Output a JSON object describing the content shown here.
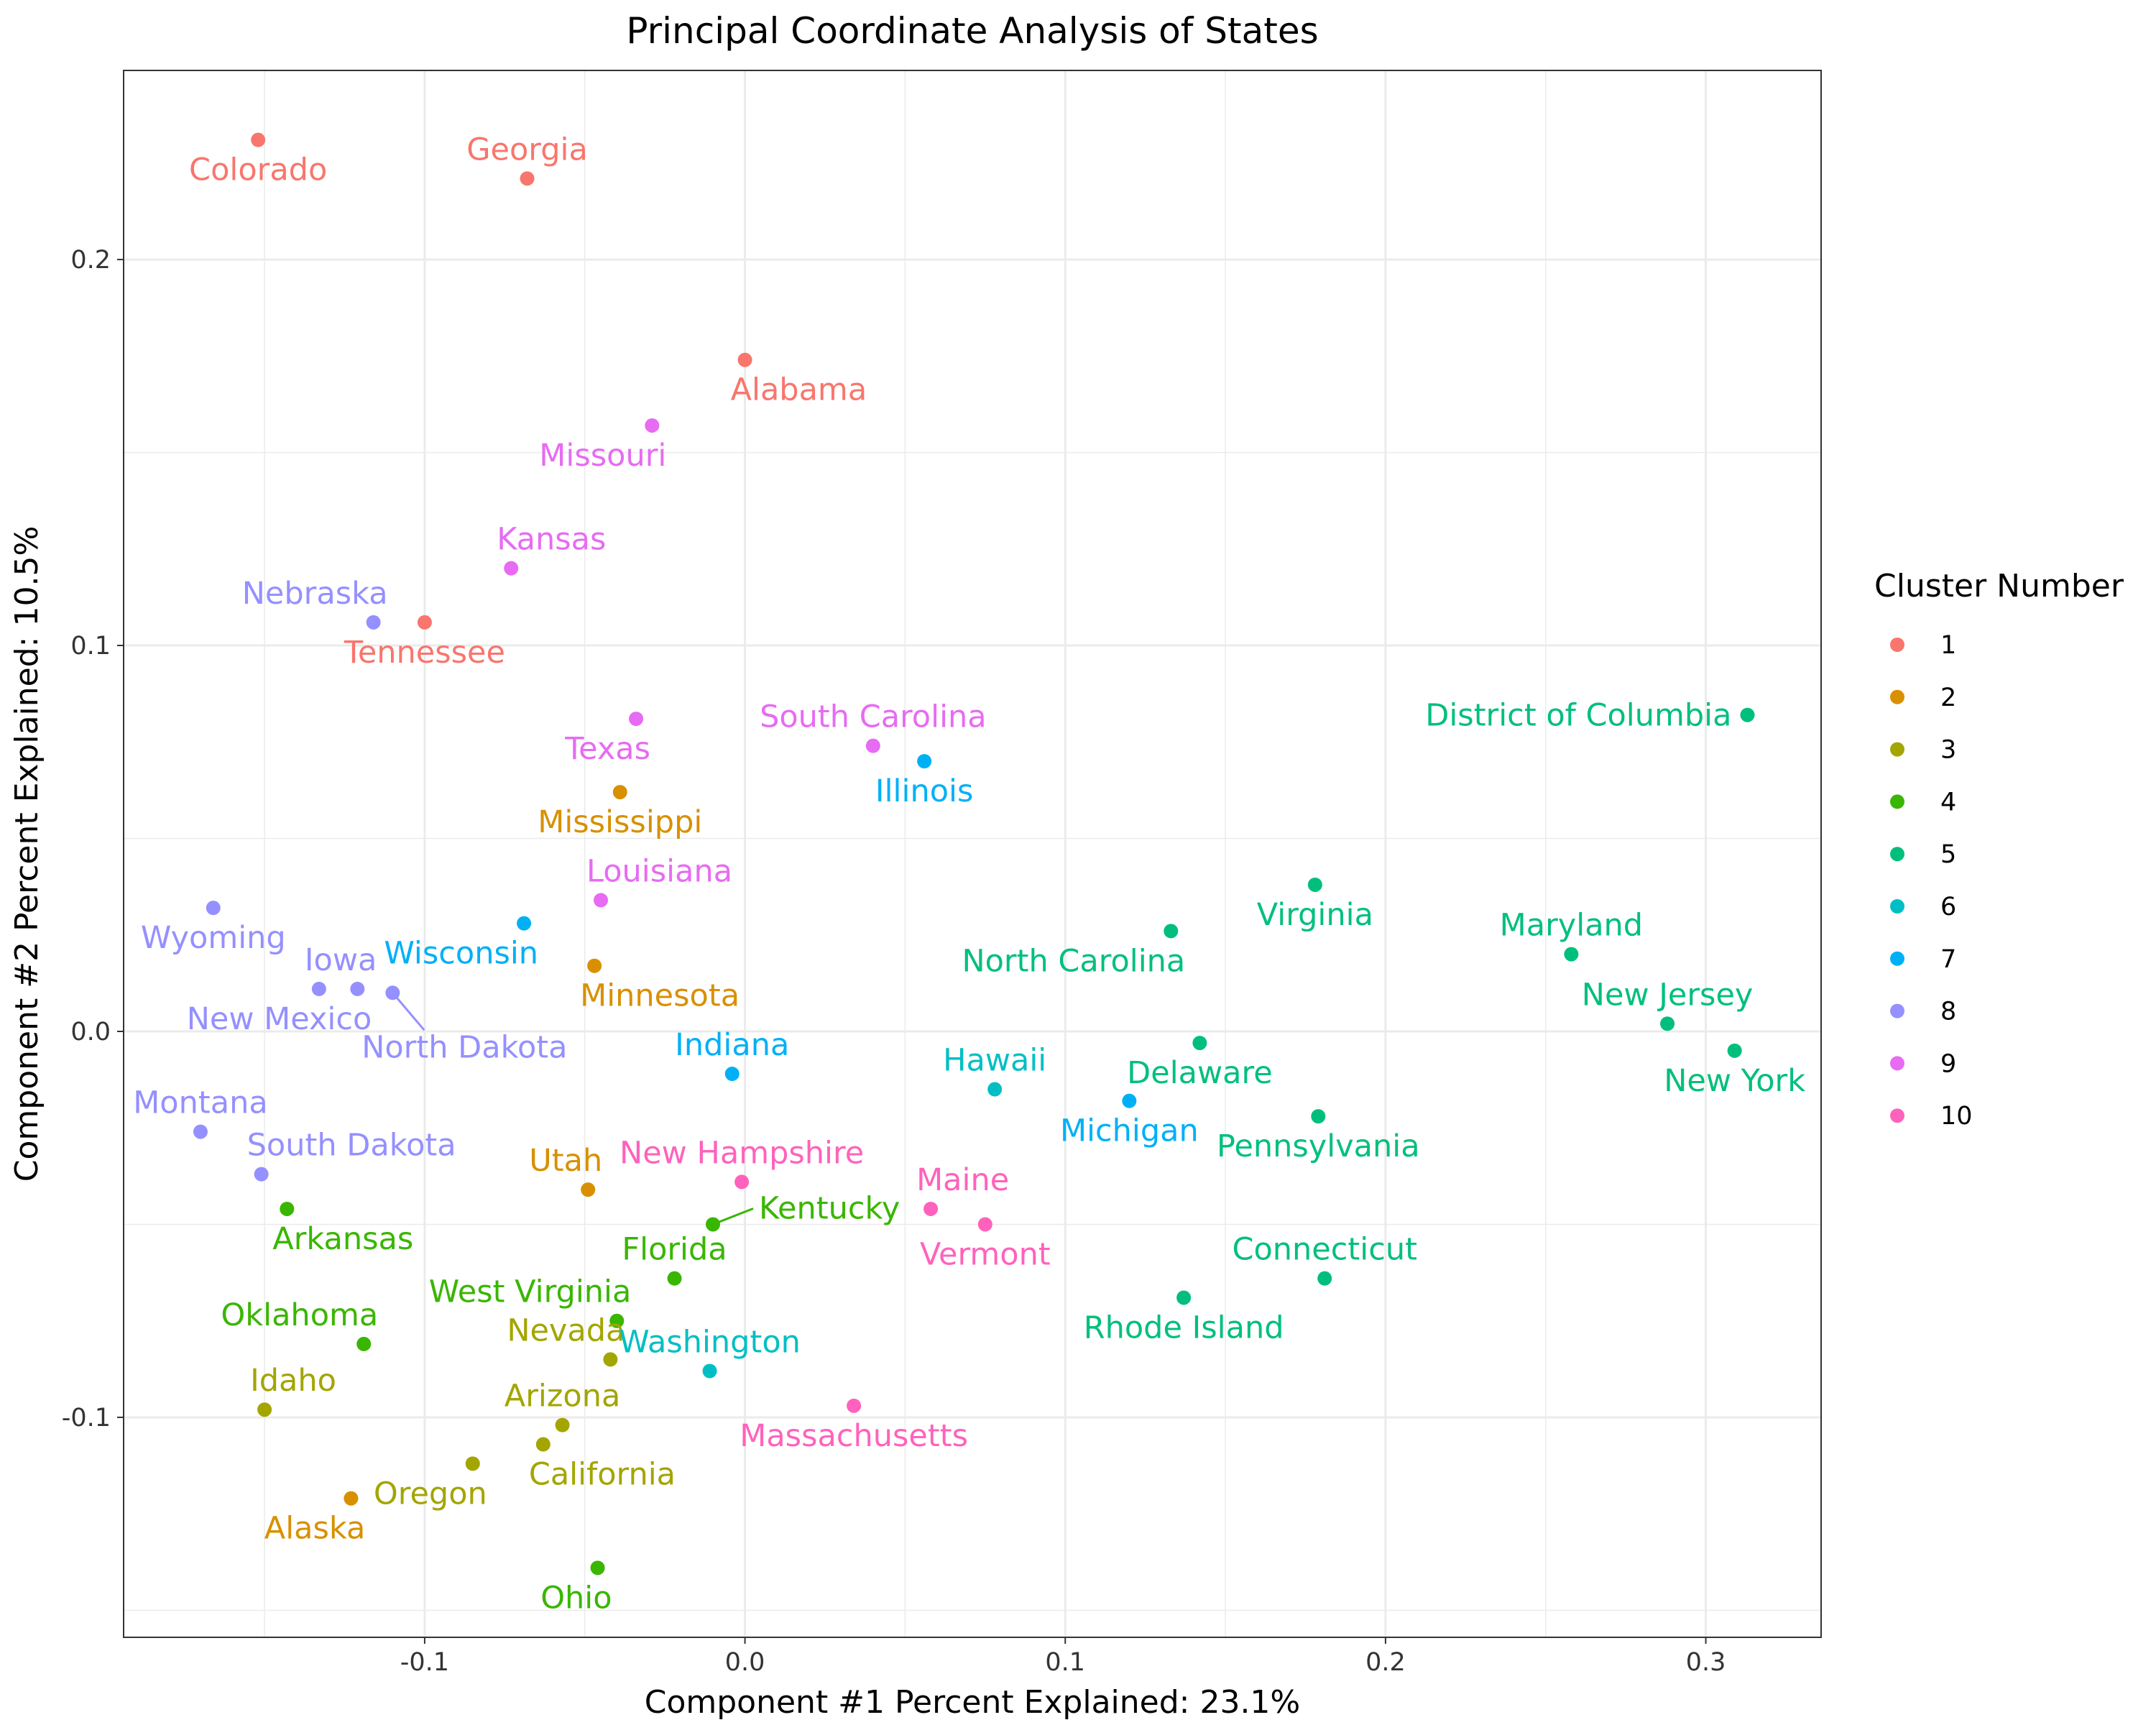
{
  "chart_data": {
    "type": "scatter",
    "title": "Principal Coordinate Analysis of States",
    "xlabel": "Component #1 Percent Explained: 23.1%",
    "ylabel": "Component #2 Percent Explained: 10.5%",
    "xlim": [
      -0.194,
      0.336
    ],
    "ylim": [
      -0.157,
      0.249
    ],
    "x_ticks": [
      -0.1,
      0.0,
      0.1,
      0.2,
      0.3
    ],
    "x_tick_labels": [
      "-0.1",
      "0.0",
      "0.1",
      "0.2",
      "0.3"
    ],
    "y_ticks": [
      -0.1,
      0.0,
      0.1,
      0.2
    ],
    "y_tick_labels": [
      "-0.1",
      "0.0",
      "0.1",
      "0.2"
    ],
    "grid": true,
    "legend": {
      "title": "Cluster Number",
      "position": "right",
      "entries": [
        {
          "label": "1",
          "color": "#F8766D"
        },
        {
          "label": "2",
          "color": "#D89000"
        },
        {
          "label": "3",
          "color": "#A3A500"
        },
        {
          "label": "4",
          "color": "#39B600"
        },
        {
          "label": "5",
          "color": "#00BF7D"
        },
        {
          "label": "6",
          "color": "#00BFC4"
        },
        {
          "label": "7",
          "color": "#00B0F6"
        },
        {
          "label": "8",
          "color": "#9590FF"
        },
        {
          "label": "9",
          "color": "#E76BF3"
        },
        {
          "label": "10",
          "color": "#FF62BC"
        }
      ]
    },
    "points": [
      {
        "label": "Colorado",
        "cluster": "1",
        "x": -0.152,
        "y": 0.231,
        "anchor": "middle",
        "pos": "below"
      },
      {
        "label": "Georgia",
        "cluster": "1",
        "x": -0.068,
        "y": 0.221,
        "anchor": "middle",
        "pos": "above"
      },
      {
        "label": "Alabama",
        "cluster": "1",
        "x": 0.0,
        "y": 0.174,
        "anchor": "start",
        "pos": "below"
      },
      {
        "label": "Tennessee",
        "cluster": "1",
        "x": -0.1,
        "y": 0.106,
        "anchor": "middle",
        "pos": "below"
      },
      {
        "label": "Mississippi",
        "cluster": "2",
        "x": -0.039,
        "y": 0.062,
        "anchor": "middle",
        "pos": "below"
      },
      {
        "label": "Minnesota",
        "cluster": "2",
        "x": -0.047,
        "y": 0.017,
        "anchor": "start",
        "pos": "below"
      },
      {
        "label": "Utah",
        "cluster": "2",
        "x": -0.049,
        "y": -0.041,
        "anchor": "end",
        "pos": "above"
      },
      {
        "label": "Alaska",
        "cluster": "2",
        "x": -0.123,
        "y": -0.121,
        "anchor": "end",
        "pos": "below"
      },
      {
        "label": "Nevada",
        "cluster": "3",
        "x": -0.042,
        "y": -0.085,
        "anchor": "end",
        "pos": "above"
      },
      {
        "label": "Idaho",
        "cluster": "3",
        "x": -0.15,
        "y": -0.098,
        "anchor": "start",
        "pos": "above"
      },
      {
        "label": "Arizona",
        "cluster": "3",
        "x": -0.057,
        "y": -0.102,
        "anchor": "middle",
        "pos": "above"
      },
      {
        "label": "California",
        "cluster": "3",
        "x": -0.063,
        "y": -0.107,
        "anchor": "start",
        "pos": "below"
      },
      {
        "label": "Oregon",
        "cluster": "3",
        "x": -0.085,
        "y": -0.112,
        "anchor": "end",
        "pos": "below"
      },
      {
        "label": "Arkansas",
        "cluster": "4",
        "x": -0.143,
        "y": -0.046,
        "anchor": "start",
        "pos": "below"
      },
      {
        "label": "Kentucky",
        "cluster": "4",
        "x": -0.01,
        "y": -0.05,
        "anchor": "start",
        "pos": "right"
      },
      {
        "label": "Florida",
        "cluster": "4",
        "x": -0.022,
        "y": -0.064,
        "anchor": "middle",
        "pos": "above"
      },
      {
        "label": "West Virginia",
        "cluster": "4",
        "x": -0.04,
        "y": -0.075,
        "anchor": "end",
        "pos": "above"
      },
      {
        "label": "Oklahoma",
        "cluster": "4",
        "x": -0.119,
        "y": -0.081,
        "anchor": "end",
        "pos": "above"
      },
      {
        "label": "Ohio",
        "cluster": "4",
        "x": -0.046,
        "y": -0.139,
        "anchor": "end",
        "pos": "below"
      },
      {
        "label": "District of Columbia",
        "cluster": "5",
        "x": 0.313,
        "y": 0.082,
        "anchor": "end",
        "pos": "left"
      },
      {
        "label": "Virginia",
        "cluster": "5",
        "x": 0.178,
        "y": 0.038,
        "anchor": "middle",
        "pos": "below"
      },
      {
        "label": "North Carolina",
        "cluster": "5",
        "x": 0.133,
        "y": 0.026,
        "anchor": "end",
        "pos": "below"
      },
      {
        "label": "Maryland",
        "cluster": "5",
        "x": 0.258,
        "y": 0.02,
        "anchor": "middle",
        "pos": "above"
      },
      {
        "label": "New Jersey",
        "cluster": "5",
        "x": 0.288,
        "y": 0.002,
        "anchor": "middle",
        "pos": "above"
      },
      {
        "label": "Delaware",
        "cluster": "5",
        "x": 0.142,
        "y": -0.003,
        "anchor": "middle",
        "pos": "below"
      },
      {
        "label": "New York",
        "cluster": "5",
        "x": 0.309,
        "y": -0.005,
        "anchor": "middle",
        "pos": "below"
      },
      {
        "label": "Pennsylvania",
        "cluster": "5",
        "x": 0.179,
        "y": -0.022,
        "anchor": "middle",
        "pos": "below"
      },
      {
        "label": "Connecticut",
        "cluster": "5",
        "x": 0.181,
        "y": -0.064,
        "anchor": "middle",
        "pos": "above"
      },
      {
        "label": "Rhode Island",
        "cluster": "5",
        "x": 0.137,
        "y": -0.069,
        "anchor": "middle",
        "pos": "below"
      },
      {
        "label": "Hawaii",
        "cluster": "6",
        "x": 0.078,
        "y": -0.015,
        "anchor": "middle",
        "pos": "above"
      },
      {
        "label": "Washington",
        "cluster": "6",
        "x": -0.011,
        "y": -0.088,
        "anchor": "middle",
        "pos": "above"
      },
      {
        "label": "Illinois",
        "cluster": "7",
        "x": 0.056,
        "y": 0.07,
        "anchor": "middle",
        "pos": "below"
      },
      {
        "label": "Wisconsin",
        "cluster": "7",
        "x": -0.069,
        "y": 0.028,
        "anchor": "end",
        "pos": "below"
      },
      {
        "label": "Indiana",
        "cluster": "7",
        "x": -0.004,
        "y": -0.011,
        "anchor": "middle",
        "pos": "above"
      },
      {
        "label": "Michigan",
        "cluster": "7",
        "x": 0.12,
        "y": -0.018,
        "anchor": "middle",
        "pos": "below"
      },
      {
        "label": "Nebraska",
        "cluster": "8",
        "x": -0.116,
        "y": 0.106,
        "anchor": "end",
        "pos": "above"
      },
      {
        "label": "Wyoming",
        "cluster": "8",
        "x": -0.166,
        "y": 0.032,
        "anchor": "middle",
        "pos": "below"
      },
      {
        "label": "Iowa",
        "cluster": "8",
        "x": -0.133,
        "y": 0.011,
        "anchor": "start",
        "pos": "above"
      },
      {
        "label": "New Mexico",
        "cluster": "8",
        "x": -0.121,
        "y": 0.011,
        "anchor": "end",
        "pos": "below"
      },
      {
        "label": "North Dakota",
        "cluster": "8",
        "x": -0.11,
        "y": 0.01,
        "anchor": "middle",
        "pos": "below"
      },
      {
        "label": "Montana",
        "cluster": "8",
        "x": -0.17,
        "y": -0.026,
        "anchor": "middle",
        "pos": "above"
      },
      {
        "label": "South Dakota",
        "cluster": "8",
        "x": -0.151,
        "y": -0.037,
        "anchor": "start",
        "pos": "above"
      },
      {
        "label": "Missouri",
        "cluster": "9",
        "x": -0.029,
        "y": 0.157,
        "anchor": "end",
        "pos": "below"
      },
      {
        "label": "Kansas",
        "cluster": "9",
        "x": -0.073,
        "y": 0.12,
        "anchor": "start",
        "pos": "above"
      },
      {
        "label": "Texas",
        "cluster": "9",
        "x": -0.034,
        "y": 0.081,
        "anchor": "end",
        "pos": "below"
      },
      {
        "label": "South Carolina",
        "cluster": "9",
        "x": 0.04,
        "y": 0.074,
        "anchor": "middle",
        "pos": "above"
      },
      {
        "label": "Louisiana",
        "cluster": "9",
        "x": -0.045,
        "y": 0.034,
        "anchor": "start",
        "pos": "above"
      },
      {
        "label": "New Hampshire",
        "cluster": "10",
        "x": -0.001,
        "y": -0.039,
        "anchor": "middle",
        "pos": "above"
      },
      {
        "label": "Maine",
        "cluster": "10",
        "x": 0.058,
        "y": -0.046,
        "anchor": "start",
        "pos": "above"
      },
      {
        "label": "Vermont",
        "cluster": "10",
        "x": 0.075,
        "y": -0.05,
        "anchor": "middle",
        "pos": "below"
      },
      {
        "label": "Massachusetts",
        "cluster": "10",
        "x": 0.034,
        "y": -0.097,
        "anchor": "middle",
        "pos": "below"
      }
    ]
  }
}
